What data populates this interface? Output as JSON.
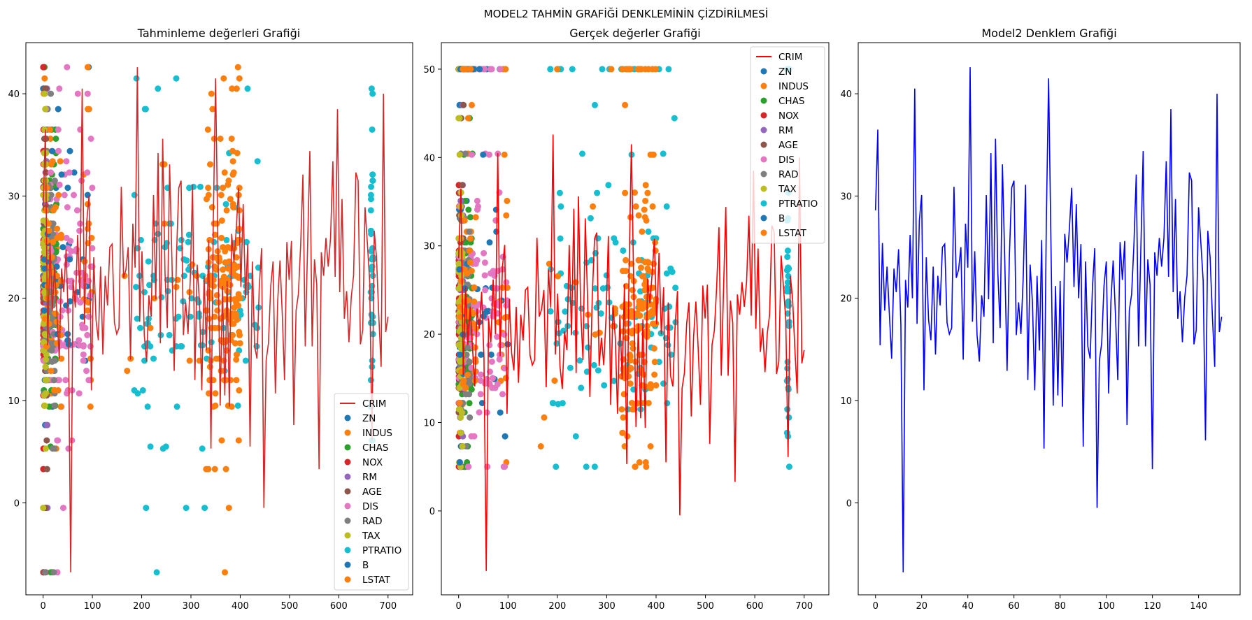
{
  "figure": {
    "suptitle": "MODEL2 TAHMİN GRAFİĞİ DENKLEMİNİN ÇİZDİRİLMESİ"
  },
  "colors": {
    "CRIM": "#d62728",
    "ZN": "#1f77b4",
    "INDUS": "#ff7f0e",
    "CHAS": "#2ca02c",
    "NOX": "#d62728",
    "RM": "#9467bd",
    "AGE": "#8c564b",
    "DIS": "#e377c2",
    "RAD": "#7f7f7f",
    "TAX": "#bcbd22",
    "PTRATIO": "#17becf",
    "B": "#1f77b4",
    "LSTAT": "#ff7f0e",
    "model_line": "#0000ff",
    "red_line_middle": "#ff0000"
  },
  "chart_data": [
    {
      "type": "scatter",
      "title": "Tahminleme değerleri Grafiği",
      "xlabel": "",
      "ylabel": "",
      "xlim": [
        -35,
        750
      ],
      "ylim": [
        -9,
        45
      ],
      "x_ticks": [
        0,
        100,
        200,
        300,
        400,
        500,
        600,
        700
      ],
      "y_ticks": [
        0,
        10,
        20,
        30,
        40
      ],
      "legend": [
        "CRIM",
        "ZN",
        "INDUS",
        "CHAS",
        "NOX",
        "RM",
        "AGE",
        "DIS",
        "RAD",
        "TAX",
        "PTRATIO",
        "B",
        "LSTAT"
      ],
      "legend_loc": "lower right",
      "line_series": {
        "name": "CRIM",
        "x_range": [
          0,
          700
        ],
        "values": "model2 predictions (same as third panel)"
      },
      "scatter_series": [
        "ZN",
        "INDUS",
        "CHAS",
        "NOX",
        "RM",
        "AGE",
        "DIS",
        "RAD",
        "TAX",
        "PTRATIO",
        "B",
        "LSTAT"
      ]
    },
    {
      "type": "scatter",
      "title": "Gerçek değerler Grafiği",
      "xlabel": "",
      "ylabel": "",
      "xlim": [
        -35,
        750
      ],
      "ylim": [
        -9.5,
        53
      ],
      "x_ticks": [
        0,
        100,
        200,
        300,
        400,
        500,
        600,
        700
      ],
      "y_ticks": [
        0,
        10,
        20,
        30,
        40,
        50
      ],
      "legend": [
        "CRIM",
        "ZN",
        "INDUS",
        "CHAS",
        "NOX",
        "RM",
        "AGE",
        "DIS",
        "RAD",
        "TAX",
        "PTRATIO",
        "B",
        "LSTAT"
      ],
      "legend_loc": "upper right",
      "line_series": {
        "name": "CRIM",
        "x_range": [
          0,
          700
        ],
        "values": "model2 predictions"
      },
      "scatter_series": [
        "ZN",
        "INDUS",
        "CHAS",
        "NOX",
        "RM",
        "AGE",
        "DIS",
        "RAD",
        "TAX",
        "PTRATIO",
        "B",
        "LSTAT"
      ]
    },
    {
      "type": "line",
      "title": "Model2 Denklem Grafiği",
      "xlabel": "",
      "ylabel": "",
      "xlim": [
        -7.5,
        158
      ],
      "ylim": [
        -9,
        45
      ],
      "x_ticks": [
        0,
        20,
        40,
        60,
        80,
        100,
        120,
        140
      ],
      "y_ticks": [
        0,
        10,
        20,
        30,
        40
      ],
      "series": [
        {
          "name": "model2",
          "x_start": 0,
          "values": [
            28.6,
            36.5,
            15.4,
            25.4,
            18.8,
            23.1,
            18.5,
            14.1,
            22.9,
            20.6,
            24.8,
            17.4,
            -6.8,
            21.8,
            19.1,
            26.2,
            20.0,
            40.5,
            17.5,
            27.6,
            30.1,
            11.0,
            24.0,
            17.9,
            15.9,
            23.1,
            14.5,
            22.2,
            19.3,
            25.0,
            25.3,
            17.6,
            16.5,
            17.1,
            30.9,
            22.0,
            22.8,
            25.0,
            14.0,
            27.3,
            23.0,
            42.6,
            17.7,
            24.6,
            16.4,
            13.8,
            20.3,
            18.2,
            30.1,
            19.9,
            34.2,
            15.6,
            35.6,
            22.5,
            17.1,
            33.1,
            23.8,
            12.9,
            24.1,
            30.8,
            31.5,
            16.4,
            19.6,
            16.5,
            22.0,
            31.1,
            12.0,
            23.3,
            19.6,
            11.0,
            22.2,
            14.9,
            25.7,
            5.3,
            27.3,
            41.5,
            25.7,
            9.5,
            21.2,
            10.5,
            21.7,
            9.4,
            26.3,
            23.5,
            26.8,
            30.8,
            21.1,
            29.2,
            20.0,
            25.3,
            5.5,
            23.6,
            15.3,
            14.1,
            21.1,
            24.9,
            -0.5,
            13.9,
            15.6,
            21.2,
            23.6,
            10.7,
            19.7,
            23.7,
            18.4,
            12.0,
            25.5,
            21.8,
            25.6,
            7.6,
            18.8,
            20.4,
            25.3,
            32.1,
            15.3,
            24.9,
            34.4,
            15.3,
            23.8,
            21.3,
            3.3,
            24.5,
            22.2,
            25.9,
            23.1,
            25.9,
            33.4,
            22.1,
            38.5,
            20.6,
            29.7,
            18.0,
            20.7,
            15.7,
            20.1,
            22.2,
            32.3,
            31.5,
            15.5,
            16.9,
            28.9,
            25.4,
            21.7,
            6.1,
            26.6,
            24.0,
            18.2,
            13.3,
            40.0,
            16.7,
            18.2
          ]
        }
      ]
    }
  ]
}
